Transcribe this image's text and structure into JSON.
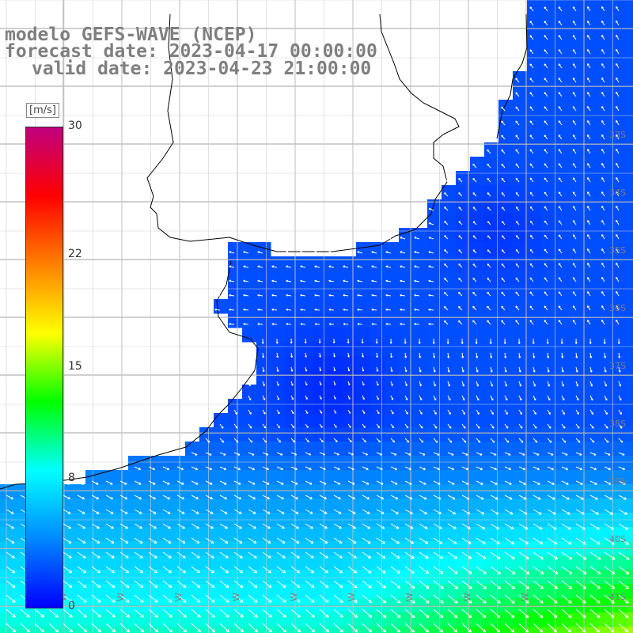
{
  "title": {
    "model": "modelo GEFS-WAVE (NCEP)",
    "forecast": "forecast date: 2023-04-17 00:00:00",
    "valid": "valid date: 2023-04-23 21:00:00"
  },
  "colorbar": {
    "unit": "[m/s]",
    "min": 0,
    "max": 30,
    "ticks": [
      "30",
      "22",
      "15",
      "8",
      "0"
    ],
    "tick_values": [
      30,
      22,
      15,
      8,
      0
    ],
    "colors": [
      "#0000ff",
      "#0088ff",
      "#00ffff",
      "#00ff00",
      "#ffff00",
      "#ff8000",
      "#ff0000",
      "#c00080"
    ]
  },
  "lat_labels": [
    "33S",
    "34S",
    "35S",
    "36S",
    "37S",
    "38S",
    "39S",
    "40S",
    "41S"
  ],
  "lat_values": [
    -33,
    -34,
    -35,
    -36,
    -37,
    -38,
    -39,
    -40,
    -41
  ],
  "lon_labels": [
    "W",
    "W",
    "W",
    "W",
    "W",
    "W",
    "W",
    "W",
    "W"
  ],
  "lon_values": [
    -61,
    -60,
    -59,
    -58,
    -57,
    -56,
    -55,
    -54,
    -53
  ],
  "colors": {
    "land": "#ffffff",
    "coast": "#000000",
    "grid": "#a0a0a0",
    "arrow": "#ffffff",
    "label": "#7f7f7f"
  }
}
